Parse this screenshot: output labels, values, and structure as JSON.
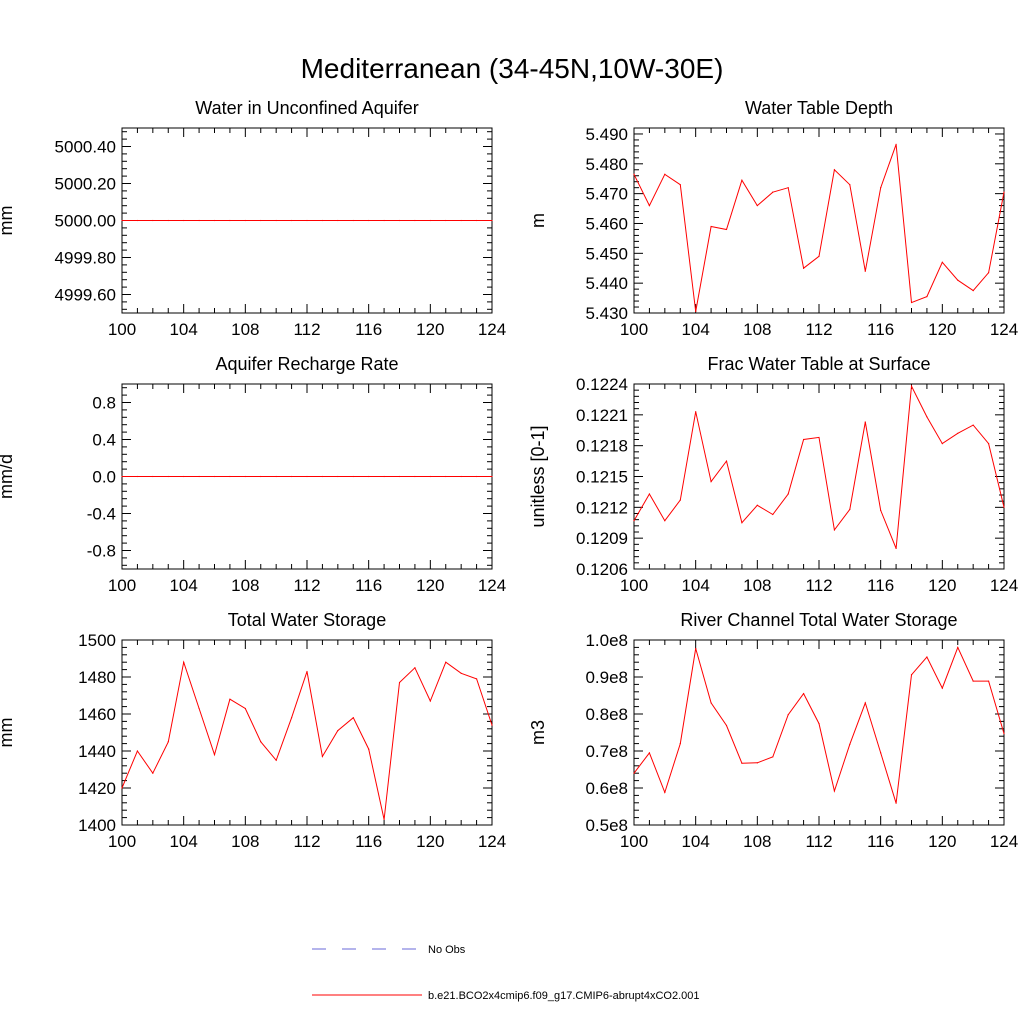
{
  "page_title": "Mediterranean (34-45N,10W-30E)",
  "legend": {
    "items": [
      {
        "label": "No Obs",
        "color": "#6a6ad8",
        "style": "dashed"
      },
      {
        "label": "b.e21.BCO2x4cmip6.f09_g17.CMIP6-abrupt4xCO2.001",
        "color": "#ff0000",
        "style": "solid"
      }
    ]
  },
  "colors": {
    "series": "#ff0000",
    "axes": "#000000"
  },
  "chart_data": [
    {
      "type": "line",
      "title": "Water in Unconfined Aquifer",
      "ylabel": "mm",
      "xlim": [
        100,
        124
      ],
      "ylim": [
        4999.5,
        5000.5
      ],
      "xticks": [
        100,
        104,
        108,
        112,
        116,
        120,
        124
      ],
      "xtick_labels": [
        "100",
        "104",
        "108",
        "112",
        "116",
        "120",
        "124"
      ],
      "yticks": [
        4999.6,
        4999.8,
        5000.0,
        5000.2,
        5000.4
      ],
      "ytick_labels": [
        "4999.60",
        "4999.80",
        "5000.00",
        "5000.20",
        "5000.40"
      ],
      "x": [
        100,
        101,
        102,
        103,
        104,
        105,
        106,
        107,
        108,
        109,
        110,
        111,
        112,
        113,
        114,
        115,
        116,
        117,
        118,
        119,
        120,
        121,
        122,
        123,
        124
      ],
      "series": [
        {
          "name": "b.e21.BCO2x4cmip6.f09_g17.CMIP6-abrupt4xCO2.001",
          "values": [
            5000,
            5000,
            5000,
            5000,
            5000,
            5000,
            5000,
            5000,
            5000,
            5000,
            5000,
            5000,
            5000,
            5000,
            5000,
            5000,
            5000,
            5000,
            5000,
            5000,
            5000,
            5000,
            5000,
            5000,
            5000
          ]
        }
      ]
    },
    {
      "type": "line",
      "title": "Water Table Depth",
      "ylabel": "m",
      "xlim": [
        100,
        124
      ],
      "ylim": [
        5.43,
        5.492
      ],
      "xticks": [
        100,
        104,
        108,
        112,
        116,
        120,
        124
      ],
      "xtick_labels": [
        "100",
        "104",
        "108",
        "112",
        "116",
        "120",
        "124"
      ],
      "yticks": [
        5.43,
        5.44,
        5.45,
        5.46,
        5.47,
        5.48,
        5.49
      ],
      "ytick_labels": [
        "5.430",
        "5.440",
        "5.450",
        "5.460",
        "5.470",
        "5.480",
        "5.490"
      ],
      "x": [
        100,
        101,
        102,
        103,
        104,
        105,
        106,
        107,
        108,
        109,
        110,
        111,
        112,
        113,
        114,
        115,
        116,
        117,
        118,
        119,
        120,
        121,
        122,
        123,
        124
      ],
      "series": [
        {
          "name": "b.e21.BCO2x4cmip6.f09_g17.CMIP6-abrupt4xCO2.001",
          "values": [
            5.4765,
            5.466,
            5.4765,
            5.473,
            5.4305,
            5.459,
            5.458,
            5.4745,
            5.466,
            5.4705,
            5.472,
            5.445,
            5.449,
            5.478,
            5.473,
            5.444,
            5.472,
            5.4865,
            5.4335,
            5.4355,
            5.447,
            5.441,
            5.4375,
            5.4435,
            5.4705
          ]
        }
      ]
    },
    {
      "type": "line",
      "title": "Aquifer Recharge Rate",
      "ylabel": "mm/d",
      "xlim": [
        100,
        124
      ],
      "ylim": [
        -1.0,
        1.0
      ],
      "xticks": [
        100,
        104,
        108,
        112,
        116,
        120,
        124
      ],
      "xtick_labels": [
        "100",
        "104",
        "108",
        "112",
        "116",
        "120",
        "124"
      ],
      "yticks": [
        -0.8,
        -0.4,
        0.0,
        0.4,
        0.8
      ],
      "ytick_labels": [
        "-0.8",
        "-0.4",
        "0.0",
        "0.4",
        "0.8"
      ],
      "x": [
        100,
        101,
        102,
        103,
        104,
        105,
        106,
        107,
        108,
        109,
        110,
        111,
        112,
        113,
        114,
        115,
        116,
        117,
        118,
        119,
        120,
        121,
        122,
        123,
        124
      ],
      "series": [
        {
          "name": "b.e21.BCO2x4cmip6.f09_g17.CMIP6-abrupt4xCO2.001",
          "values": [
            0,
            0,
            0,
            0,
            0,
            0,
            0,
            0,
            0,
            0,
            0,
            0,
            0,
            0,
            0,
            0,
            0,
            0,
            0,
            0,
            0,
            0,
            0,
            0,
            0
          ]
        }
      ]
    },
    {
      "type": "line",
      "title": "Frac Water Table at Surface",
      "ylabel": "unitless [0-1]",
      "xlim": [
        100,
        124
      ],
      "ylim": [
        0.1206,
        0.1224
      ],
      "xticks": [
        100,
        104,
        108,
        112,
        116,
        120,
        124
      ],
      "xtick_labels": [
        "100",
        "104",
        "108",
        "112",
        "116",
        "120",
        "124"
      ],
      "yticks": [
        0.1206,
        0.1209,
        0.1212,
        0.1215,
        0.1218,
        0.1221,
        0.1224
      ],
      "ytick_labels": [
        "0.1206",
        "0.1209",
        "0.1212",
        "0.1215",
        "0.1218",
        "0.1221",
        "0.1224"
      ],
      "x": [
        100,
        101,
        102,
        103,
        104,
        105,
        106,
        107,
        108,
        109,
        110,
        111,
        112,
        113,
        114,
        115,
        116,
        117,
        118,
        119,
        120,
        121,
        122,
        123,
        124
      ],
      "series": [
        {
          "name": "b.e21.BCO2x4cmip6.f09_g17.CMIP6-abrupt4xCO2.001",
          "values": [
            0.12107,
            0.12133,
            0.12107,
            0.12127,
            0.12213,
            0.12145,
            0.12165,
            0.12105,
            0.12122,
            0.12113,
            0.12133,
            0.12186,
            0.12188,
            0.12098,
            0.12118,
            0.12203,
            0.12117,
            0.1208,
            0.12238,
            0.12208,
            0.12182,
            0.12192,
            0.122,
            0.12182,
            0.1212
          ]
        }
      ]
    },
    {
      "type": "line",
      "title": "Total Water Storage",
      "ylabel": "mm",
      "xlim": [
        100,
        124
      ],
      "ylim": [
        1400,
        1500
      ],
      "xticks": [
        100,
        104,
        108,
        112,
        116,
        120,
        124
      ],
      "xtick_labels": [
        "100",
        "104",
        "108",
        "112",
        "116",
        "120",
        "124"
      ],
      "yticks": [
        1400,
        1420,
        1440,
        1460,
        1480,
        1500
      ],
      "ytick_labels": [
        "1400",
        "1420",
        "1440",
        "1460",
        "1480",
        "1500"
      ],
      "x": [
        100,
        101,
        102,
        103,
        104,
        105,
        106,
        107,
        108,
        109,
        110,
        111,
        112,
        113,
        114,
        115,
        116,
        117,
        118,
        119,
        120,
        121,
        122,
        123,
        124
      ],
      "series": [
        {
          "name": "b.e21.BCO2x4cmip6.f09_g17.CMIP6-abrupt4xCO2.001",
          "values": [
            1420,
            1440,
            1428,
            1445,
            1488,
            1463,
            1438,
            1468,
            1463,
            1445,
            1435,
            1458,
            1483,
            1437,
            1451,
            1458,
            1441,
            1403,
            1477,
            1485,
            1467,
            1488,
            1482,
            1479,
            1454
          ]
        }
      ]
    },
    {
      "type": "line",
      "title": "River Channel Total Water Storage",
      "ylabel": "m3",
      "xlim": [
        100,
        124
      ],
      "ylim": [
        50000000,
        100000000
      ],
      "xticks": [
        100,
        104,
        108,
        112,
        116,
        120,
        124
      ],
      "xtick_labels": [
        "100",
        "104",
        "108",
        "112",
        "116",
        "120",
        "124"
      ],
      "yticks": [
        50000000,
        60000000,
        70000000,
        80000000,
        90000000,
        100000000
      ],
      "ytick_labels": [
        "0.5e8",
        "0.6e8",
        "0.7e8",
        "0.8e8",
        "0.9e8",
        "1.0e8"
      ],
      "x": [
        100,
        101,
        102,
        103,
        104,
        105,
        106,
        107,
        108,
        109,
        110,
        111,
        112,
        113,
        114,
        115,
        116,
        117,
        118,
        119,
        120,
        121,
        122,
        123,
        124
      ],
      "series": [
        {
          "name": "b.e21.BCO2x4cmip6.f09_g17.CMIP6-abrupt4xCO2.001",
          "values": [
            64000000,
            69500000,
            58800000,
            72000000,
            97700000,
            83000000,
            76900000,
            66700000,
            66800000,
            68400000,
            79800000,
            85500000,
            77400000,
            59200000,
            71800000,
            83000000,
            69500000,
            55900000,
            90600000,
            95400000,
            87000000,
            98000000,
            88900000,
            88900000,
            74700000
          ]
        }
      ]
    }
  ]
}
